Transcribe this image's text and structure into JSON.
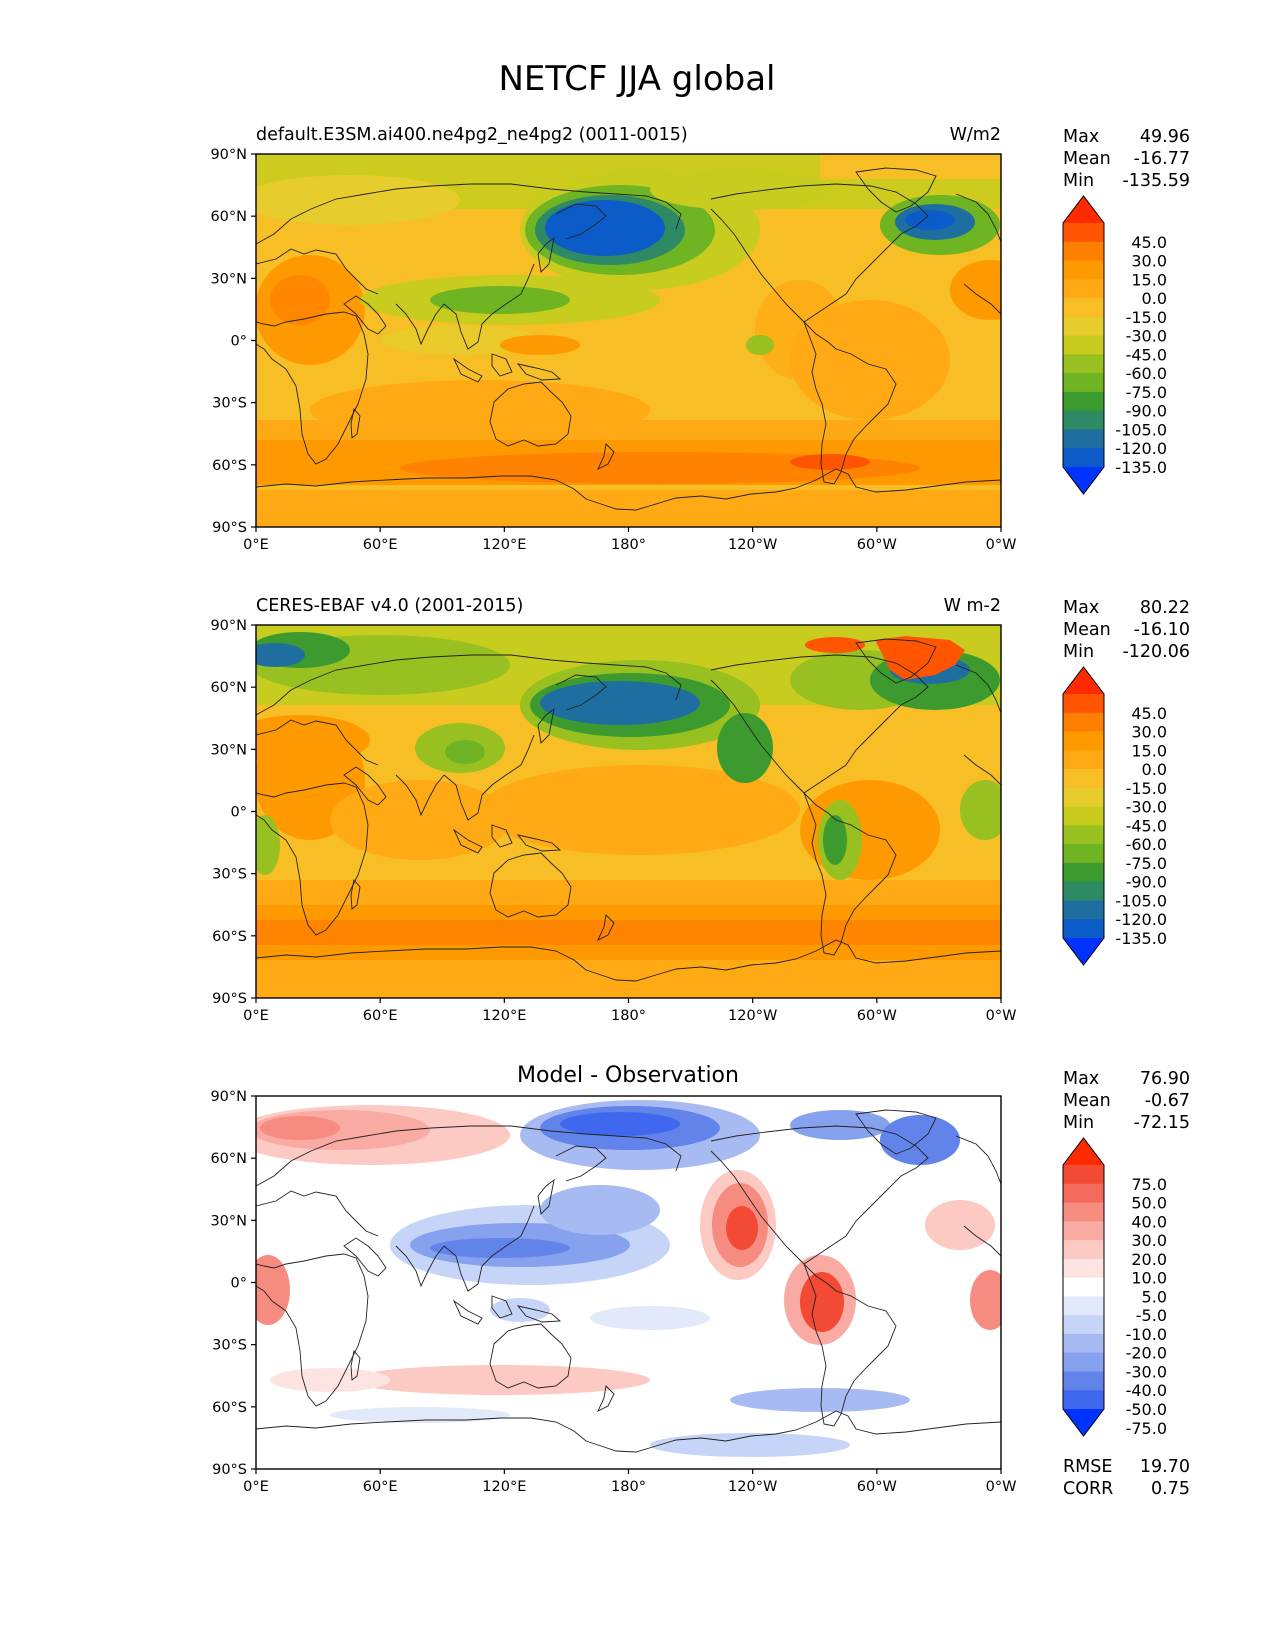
{
  "figure": {
    "title": "NETCF JJA global"
  },
  "lat_ticks": [
    "90°N",
    "60°N",
    "30°N",
    "0°",
    "30°S",
    "60°S",
    "90°S"
  ],
  "lon_ticks": [
    "0°E",
    "60°E",
    "120°E",
    "180°",
    "120°W",
    "60°W",
    "0°W"
  ],
  "panels": [
    {
      "id": "model",
      "title_left": "default.E3SM.ai400.ne4pg2_ne4pg2 (0011-0015)",
      "title_center": "",
      "units": "W/m2",
      "stats": [
        {
          "label": "Max",
          "value": "49.96"
        },
        {
          "label": "Mean",
          "value": "-16.77"
        },
        {
          "label": "Min",
          "value": "-135.59"
        }
      ],
      "colorbar": {
        "labels": [
          "45.0",
          "30.0",
          "15.0",
          "0.0",
          "-15.0",
          "-30.0",
          "-45.0",
          "-60.0",
          "-75.0",
          "-90.0",
          "-105.0",
          "-120.0",
          "-135.0"
        ],
        "colors": [
          "#ff2a00",
          "#ff5500",
          "#ff7f00",
          "#ff9900",
          "#ffaa14",
          "#f7be26",
          "#e6cc2c",
          "#c8cc1e",
          "#97c020",
          "#6eb423",
          "#3c9a2f",
          "#2e8a64",
          "#1e6fa0",
          "#0b5cc8",
          "#0033ff"
        ]
      },
      "extra_stats": []
    },
    {
      "id": "observation",
      "title_left": "CERES-EBAF v4.0 (2001-2015)",
      "title_center": "",
      "units": "W m-2",
      "stats": [
        {
          "label": "Max",
          "value": "80.22"
        },
        {
          "label": "Mean",
          "value": "-16.10"
        },
        {
          "label": "Min",
          "value": "-120.06"
        }
      ],
      "colorbar": {
        "labels": [
          "45.0",
          "30.0",
          "15.0",
          "0.0",
          "-15.0",
          "-30.0",
          "-45.0",
          "-60.0",
          "-75.0",
          "-90.0",
          "-105.0",
          "-120.0",
          "-135.0"
        ],
        "colors": [
          "#ff2a00",
          "#ff5500",
          "#ff7f00",
          "#ff9900",
          "#ffaa14",
          "#f7be26",
          "#e6cc2c",
          "#c8cc1e",
          "#97c020",
          "#6eb423",
          "#3c9a2f",
          "#2e8a64",
          "#1e6fa0",
          "#0b5cc8",
          "#0033ff"
        ]
      },
      "extra_stats": []
    },
    {
      "id": "difference",
      "title_left": "",
      "title_center": "Model - Observation",
      "units": "",
      "stats": [
        {
          "label": "Max",
          "value": "76.90"
        },
        {
          "label": "Mean",
          "value": "-0.67"
        },
        {
          "label": "Min",
          "value": "-72.15"
        }
      ],
      "colorbar": {
        "labels": [
          "75.0",
          "50.0",
          "40.0",
          "30.0",
          "20.0",
          "10.0",
          "5.0",
          "-5.0",
          "-10.0",
          "-20.0",
          "-30.0",
          "-40.0",
          "-50.0",
          "-75.0"
        ],
        "colors": [
          "#ff2a00",
          "#f24a35",
          "#f36a5c",
          "#f68b80",
          "#f9aaa3",
          "#fcc9c3",
          "#fde4e0",
          "#ffffff",
          "#e1e9fb",
          "#c6d4f7",
          "#a7bbf2",
          "#86a1ee",
          "#6284ea",
          "#3f68ee",
          "#0033ff"
        ]
      },
      "extra_stats": [
        {
          "label": "RMSE",
          "value": "19.70"
        },
        {
          "label": "CORR",
          "value": "0.75"
        }
      ]
    }
  ]
}
